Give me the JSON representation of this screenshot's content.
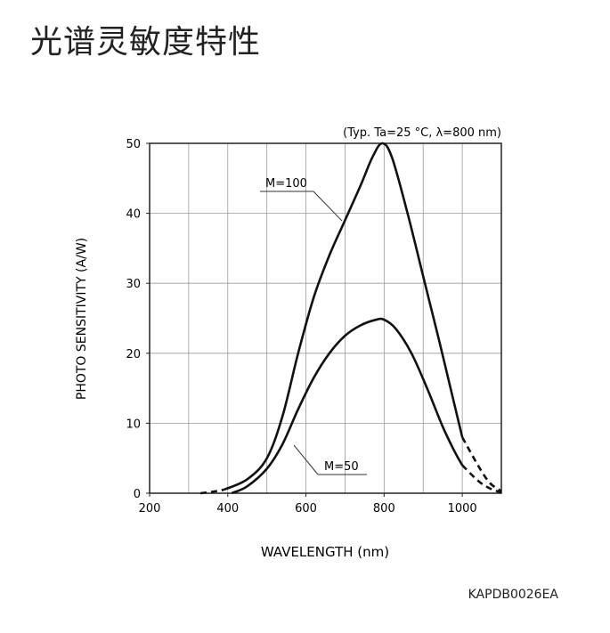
{
  "page": {
    "title": "光谱灵敏度特性"
  },
  "figure_code": "KAPDB0026EA",
  "chart_data": {
    "type": "line",
    "title": "",
    "condition": "(Typ. Ta=25 °C, λ=800 nm)",
    "xlabel": "WAVELENGTH (nm)",
    "ylabel": "PHOTO SENSITIVITY (A/W)",
    "xlim": [
      200,
      1100
    ],
    "ylim": [
      0,
      50
    ],
    "xticks": [
      200,
      400,
      600,
      800,
      1000
    ],
    "yticks": [
      0,
      10,
      20,
      30,
      40,
      50
    ],
    "grid": true,
    "series": [
      {
        "name": "M=100",
        "solid": [
          [
            390,
            0.5
          ],
          [
            450,
            2
          ],
          [
            500,
            5
          ],
          [
            540,
            11
          ],
          [
            580,
            20
          ],
          [
            620,
            28
          ],
          [
            660,
            34
          ],
          [
            700,
            39
          ],
          [
            740,
            44
          ],
          [
            770,
            48
          ],
          [
            795,
            50
          ],
          [
            820,
            48
          ],
          [
            860,
            40
          ],
          [
            900,
            31
          ],
          [
            940,
            22
          ],
          [
            970,
            15
          ],
          [
            1000,
            8
          ]
        ],
        "dashed": [
          [
            330,
            0
          ],
          [
            360,
            0.2
          ],
          [
            390,
            0.5
          ]
        ],
        "dashed_tail": [
          [
            1000,
            8
          ],
          [
            1040,
            4
          ],
          [
            1070,
            1.5
          ],
          [
            1100,
            0.3
          ]
        ]
      },
      {
        "name": "M=50",
        "solid": [
          [
            410,
            0
          ],
          [
            450,
            1
          ],
          [
            500,
            3.5
          ],
          [
            540,
            7
          ],
          [
            580,
            12
          ],
          [
            620,
            16.5
          ],
          [
            660,
            20
          ],
          [
            700,
            22.5
          ],
          [
            740,
            24
          ],
          [
            780,
            24.8
          ],
          [
            800,
            24.8
          ],
          [
            830,
            23.5
          ],
          [
            870,
            20
          ],
          [
            910,
            15
          ],
          [
            950,
            9.5
          ],
          [
            980,
            6
          ],
          [
            1000,
            4
          ]
        ],
        "dashed": [],
        "dashed_tail": [
          [
            1000,
            4
          ],
          [
            1040,
            1.8
          ],
          [
            1070,
            0.7
          ],
          [
            1100,
            0.1
          ]
        ]
      }
    ],
    "annotations": [
      {
        "text": "M=100",
        "points_to_x": 700
      },
      {
        "text": "M=50",
        "points_to_x": 560
      }
    ]
  }
}
